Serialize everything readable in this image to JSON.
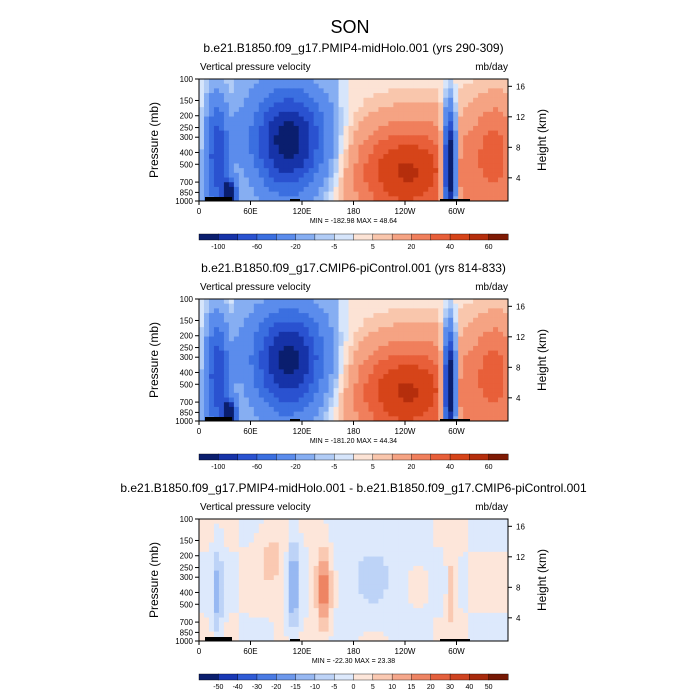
{
  "figure": {
    "title": "SON"
  },
  "chart_data": [
    {
      "type": "heatmap",
      "title": "b.e21.B1850.f09_g17.PMIP4-midHolo.001 (yrs 290-309)",
      "left_label": "Vertical pressure velocity",
      "right_label": "mb/day",
      "ylabel": "Pressure (mb)",
      "ylabel_right": "Height (km)",
      "x_ticks": [
        "0",
        "60E",
        "120E",
        "180",
        "120W",
        "60W"
      ],
      "y_ticks": [
        "100",
        "150",
        "200",
        "250",
        "300",
        "400",
        "500",
        "700",
        "850",
        "1000"
      ],
      "height_ticks": [
        "16",
        "12",
        "8",
        "4"
      ],
      "stats": "MIN = -182.98   MAX =  48.64",
      "colorbar_labels": [
        "-100",
        "-60",
        "-20",
        "-5",
        "5",
        "20",
        "40",
        "60"
      ]
    },
    {
      "type": "heatmap",
      "title": "b.e21.B1850.f09_g17.CMIP6-piControl.001 (yrs 814-833)",
      "left_label": "Vertical pressure velocity",
      "right_label": "mb/day",
      "ylabel": "Pressure (mb)",
      "ylabel_right": "Height (km)",
      "x_ticks": [
        "0",
        "60E",
        "120E",
        "180",
        "120W",
        "60W"
      ],
      "y_ticks": [
        "100",
        "150",
        "200",
        "250",
        "300",
        "400",
        "500",
        "700",
        "850",
        "1000"
      ],
      "height_ticks": [
        "16",
        "12",
        "8",
        "4"
      ],
      "stats": "MIN = -181.20   MAX =  44.34",
      "colorbar_labels": [
        "-100",
        "-60",
        "-20",
        "-5",
        "5",
        "20",
        "40",
        "60"
      ]
    },
    {
      "type": "heatmap",
      "title": "b.e21.B1850.f09_g17.PMIP4-midHolo.001 - b.e21.B1850.f09_g17.CMIP6-piControl.001",
      "left_label": "Vertical pressure velocity",
      "right_label": "mb/day",
      "ylabel": "Pressure (mb)",
      "ylabel_right": "Height (km)",
      "x_ticks": [
        "0",
        "60E",
        "120E",
        "180",
        "120W",
        "60W"
      ],
      "y_ticks": [
        "100",
        "150",
        "200",
        "250",
        "300",
        "400",
        "500",
        "700",
        "850",
        "1000"
      ],
      "height_ticks": [
        "16",
        "12",
        "8",
        "4"
      ],
      "stats": "MIN = -22.30   MAX =  23.38",
      "colorbar_labels": [
        "-50",
        "-40",
        "-30",
        "-20",
        "-15",
        "-10",
        "-5",
        "0",
        "5",
        "10",
        "15",
        "20",
        "30",
        "40",
        "50"
      ]
    }
  ]
}
